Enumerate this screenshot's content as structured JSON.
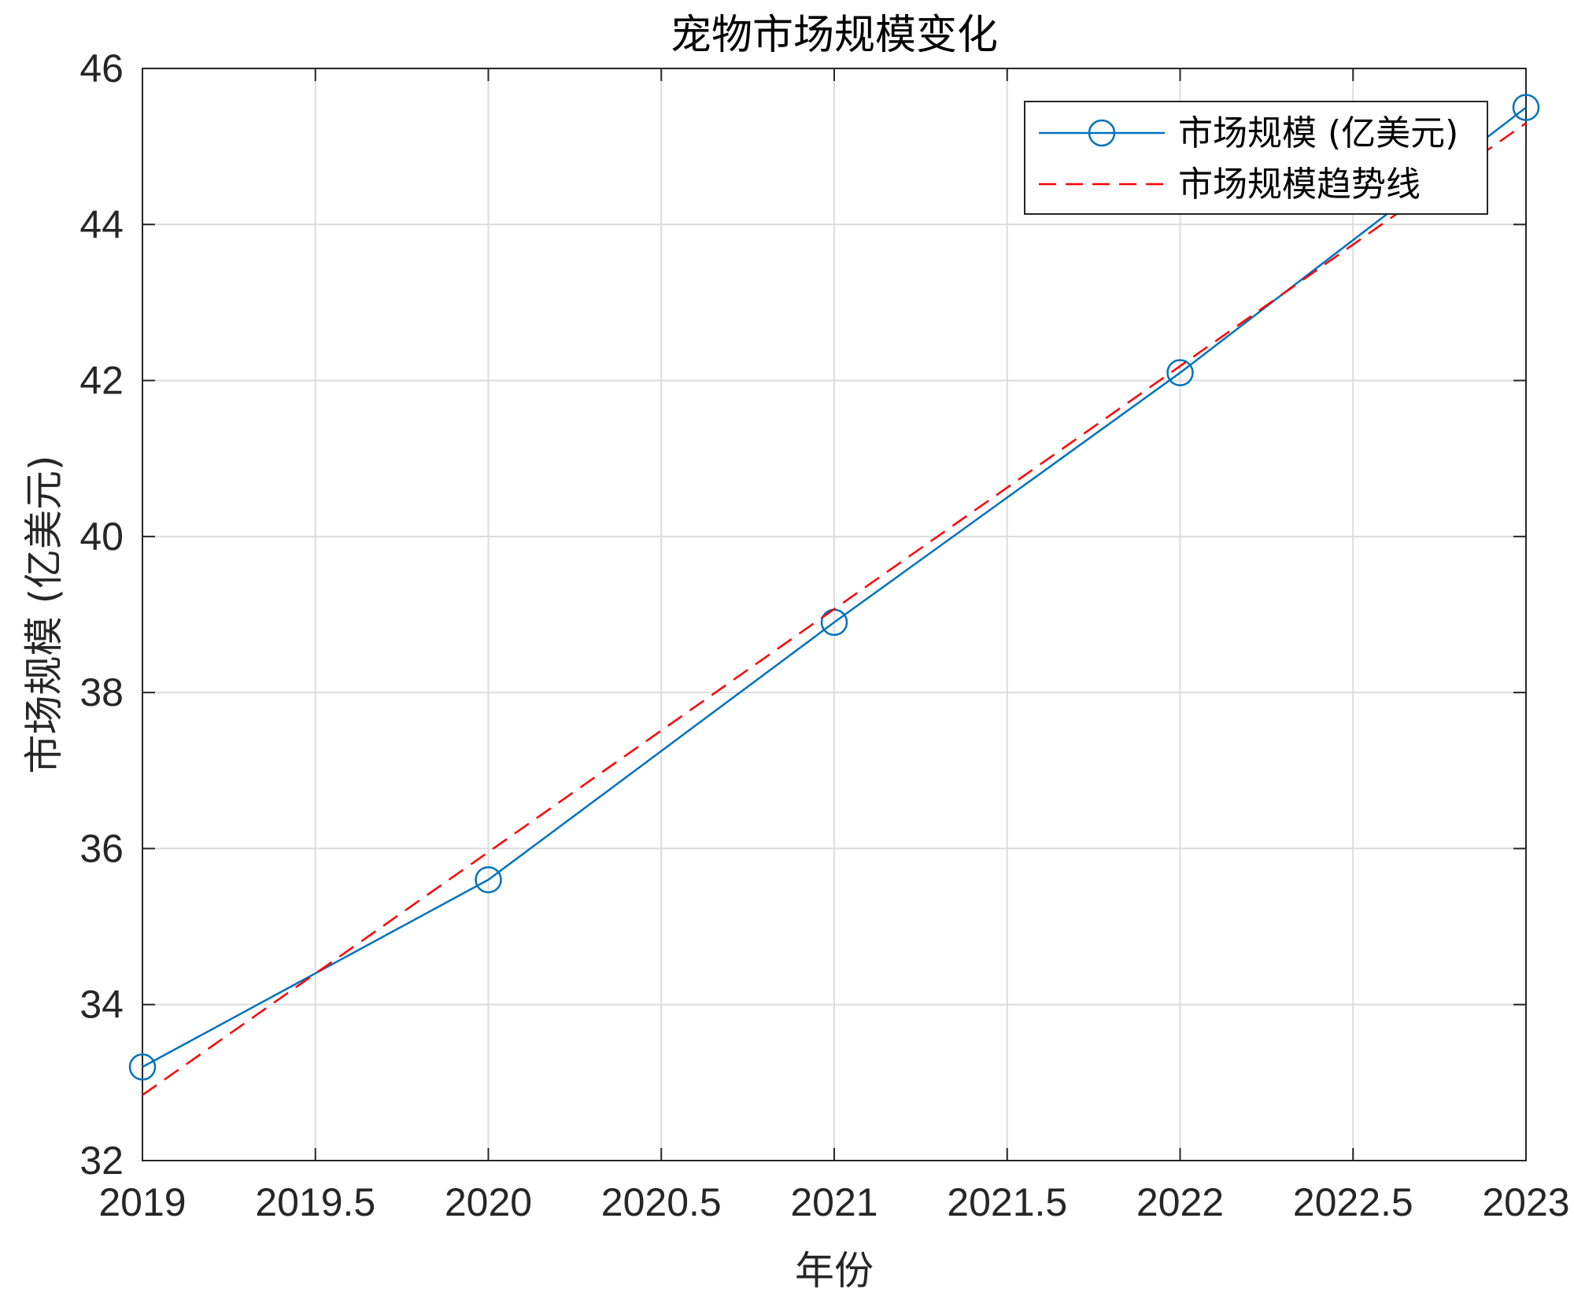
{
  "chart_data": {
    "type": "line",
    "title": "宠物市场规模变化",
    "xlabel": "年份",
    "ylabel": "市场规模 (亿美元)",
    "xlim": [
      2019,
      2023
    ],
    "ylim": [
      32,
      46
    ],
    "xticks": [
      "2019",
      "2019.5",
      "2020",
      "2020.5",
      "2021",
      "2021.5",
      "2022",
      "2022.5",
      "2023"
    ],
    "yticks": [
      "32",
      "34",
      "36",
      "38",
      "40",
      "42",
      "44",
      "46"
    ],
    "grid": true,
    "legend_position": "top-right",
    "series": [
      {
        "name": "市场规模 (亿美元)",
        "style": "solid-circle-markers",
        "color": "#0072BD",
        "x": [
          2019,
          2020,
          2021,
          2022,
          2023
        ],
        "y": [
          33.2,
          35.6,
          38.9,
          42.1,
          45.5
        ]
      },
      {
        "name": "市场规模趋势线",
        "style": "dashed",
        "color": "#FF0000",
        "x": [
          2019,
          2023
        ],
        "y": [
          32.84,
          45.3
        ]
      }
    ]
  }
}
